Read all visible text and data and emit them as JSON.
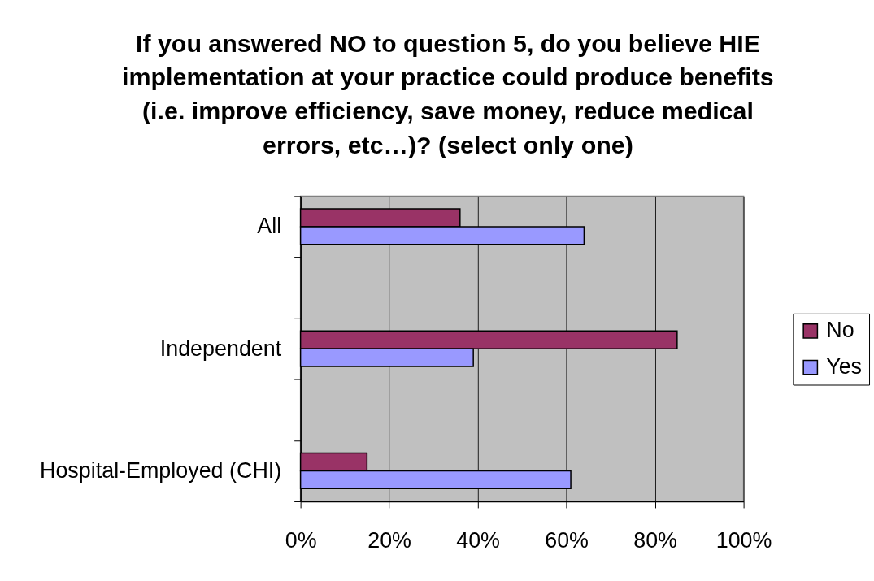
{
  "chart_data": {
    "type": "bar",
    "orientation": "horizontal",
    "title": "If you answered NO to question 5, do you believe HIE implementation at your practice could produce benefits (i.e. improve efficiency, save money, reduce medical errors, etc…)? (select only one)",
    "categories": [
      "All",
      null,
      "Independent",
      null,
      "Hospital-Employed (CHI)"
    ],
    "series": [
      {
        "name": "No",
        "color": "#993366",
        "values": [
          36,
          null,
          85,
          null,
          15
        ]
      },
      {
        "name": "Yes",
        "color": "#9999ff",
        "values": [
          64,
          null,
          39,
          null,
          61
        ]
      }
    ],
    "xlim": [
      0,
      100
    ],
    "xticks": [
      {
        "value": 0,
        "label": "0%"
      },
      {
        "value": 20,
        "label": "20%"
      },
      {
        "value": 40,
        "label": "40%"
      },
      {
        "value": 60,
        "label": "60%"
      },
      {
        "value": 80,
        "label": "80%"
      },
      {
        "value": 100,
        "label": "100%"
      }
    ],
    "grid": "x",
    "legend": "right"
  }
}
